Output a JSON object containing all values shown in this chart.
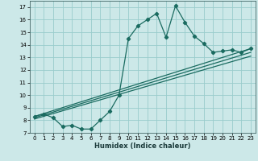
{
  "title": "",
  "xlabel": "Humidex (Indice chaleur)",
  "bg_color": "#cce8e8",
  "grid_color": "#99cccc",
  "line_color": "#1a6b60",
  "xlim": [
    -0.5,
    23.5
  ],
  "ylim": [
    7,
    17.5
  ],
  "xticks": [
    0,
    1,
    2,
    3,
    4,
    5,
    6,
    7,
    8,
    9,
    10,
    11,
    12,
    13,
    14,
    15,
    16,
    17,
    18,
    19,
    20,
    21,
    22,
    23
  ],
  "yticks": [
    7,
    8,
    9,
    10,
    11,
    12,
    13,
    14,
    15,
    16,
    17
  ],
  "series1_x": [
    0,
    1,
    2,
    3,
    4,
    5,
    6,
    7,
    8,
    9,
    10,
    11,
    12,
    13,
    14,
    15,
    16,
    17,
    18,
    19,
    20,
    21,
    22,
    23
  ],
  "series1_y": [
    8.3,
    8.5,
    8.2,
    7.5,
    7.6,
    7.3,
    7.3,
    8.0,
    8.7,
    10.0,
    14.5,
    15.5,
    16.0,
    16.5,
    14.6,
    17.1,
    15.8,
    14.7,
    14.1,
    13.4,
    13.5,
    13.6,
    13.4,
    13.7
  ],
  "series2_y_start": 8.3,
  "series2_y_end": 13.7,
  "series3_y_start": 8.2,
  "series3_y_end": 13.4,
  "series4_y_start": 8.1,
  "series4_y_end": 13.1
}
